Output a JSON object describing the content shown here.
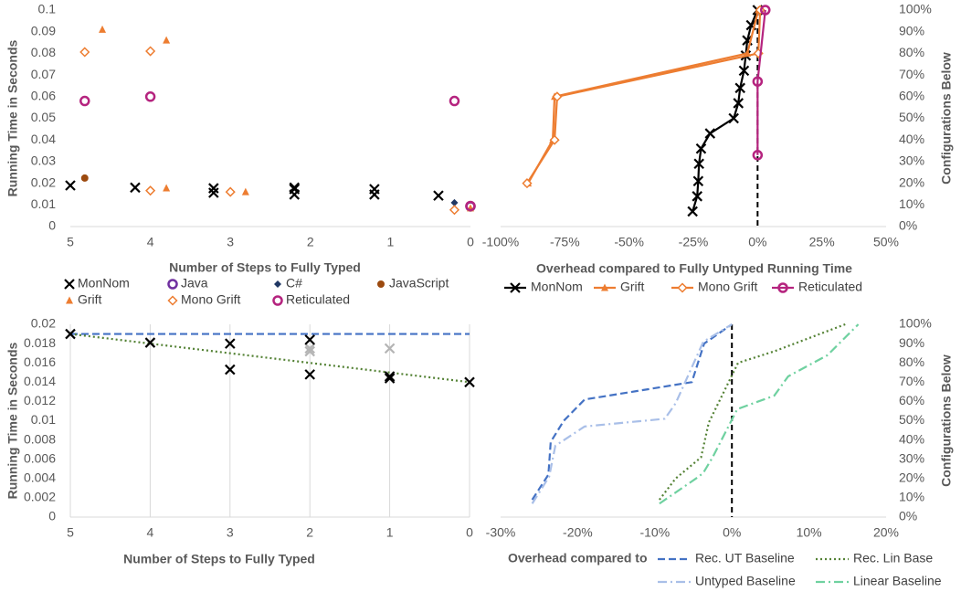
{
  "chart_data": [
    {
      "type": "scatter",
      "xlabel": "Number of Steps to Fully Typed",
      "ylabel": "Running Time in Seconds",
      "xlim": [
        5,
        0
      ],
      "xticks": [
        5,
        4,
        3,
        2,
        1,
        0
      ],
      "ylim": [
        0,
        0.1
      ],
      "yticks": [
        0,
        0.01,
        0.02,
        0.03,
        0.04,
        0.05,
        0.06,
        0.07,
        0.08,
        0.09,
        0.1
      ],
      "series": [
        {
          "name": "MonNom",
          "color": "#000000",
          "marker": "x",
          "x": [
            5,
            4.19,
            3.21,
            3.21,
            2.2,
            2.2,
            2.2,
            1.2,
            1.2,
            0.4
          ],
          "values": [
            0.019,
            0.018,
            0.0177,
            0.0156,
            0.018,
            0.0173,
            0.0148,
            0.0173,
            0.0148,
            0.0143
          ]
        },
        {
          "name": "Java",
          "color": "#7030a0",
          "marker": "ring",
          "x": [
            0
          ],
          "values": [
            0.0093
          ]
        },
        {
          "name": "C#",
          "color": "#203864",
          "marker": "diamond",
          "x": [
            0.2
          ],
          "values": [
            0.011
          ]
        },
        {
          "name": "JavaScript",
          "color": "#9c4a0f",
          "marker": "dot",
          "x": [
            4.82
          ],
          "values": [
            0.0224
          ]
        },
        {
          "name": "Grift",
          "color": "#ed7d31",
          "marker": "triangle",
          "x": [
            4.6,
            3.8,
            3.8,
            2.81,
            0
          ],
          "values": [
            0.091,
            0.086,
            0.0177,
            0.016,
            0.0085
          ]
        },
        {
          "name": "Mono Grift",
          "color": "#ed7d31",
          "marker": "open-diamond",
          "x": [
            4.82,
            4.0,
            4.0,
            3.0,
            0.2
          ],
          "values": [
            0.0806,
            0.081,
            0.0166,
            0.016,
            0.0077
          ]
        },
        {
          "name": "Reticulated",
          "color": "#b5247f",
          "marker": "ring",
          "x": [
            4.82,
            4.0,
            0.2,
            0
          ],
          "values": [
            0.058,
            0.06,
            0.058,
            0.0095
          ]
        }
      ]
    },
    {
      "type": "line",
      "xlabel": "Overhead compared to Fully Untyped Running Time",
      "ylabel": "Configurations Below",
      "yaxis_side": "right",
      "xlim": [
        -100,
        50
      ],
      "xticks": [
        {
          "value": -100,
          "label": "-100%"
        },
        {
          "value": -75,
          "label": "-75%"
        },
        {
          "value": -50,
          "label": "-50%"
        },
        {
          "value": -25,
          "label": "-25%"
        },
        {
          "value": 0,
          "label": "0%"
        },
        {
          "value": 25,
          "label": "25%"
        },
        {
          "value": 50,
          "label": "50%"
        }
      ],
      "ylim": [
        0,
        100
      ],
      "yticks": [
        {
          "value": 0,
          "label": "0%"
        },
        {
          "value": 10,
          "label": "10%"
        },
        {
          "value": 20,
          "label": "20%"
        },
        {
          "value": 30,
          "label": "30%"
        },
        {
          "value": 40,
          "label": "40%"
        },
        {
          "value": 50,
          "label": "50%"
        },
        {
          "value": 60,
          "label": "60%"
        },
        {
          "value": 70,
          "label": "70%"
        },
        {
          "value": 80,
          "label": "80%"
        },
        {
          "value": 90,
          "label": "90%"
        },
        {
          "value": 100,
          "label": "100%"
        }
      ],
      "vline": 0,
      "series": [
        {
          "name": "MonNom",
          "color": "#000000",
          "marker": "x",
          "line": "solid",
          "x": [
            -25.3,
            -23.5,
            -23.1,
            -22.8,
            -22,
            -18.5,
            -9.3,
            -7.5,
            -6.8,
            -5.3,
            -4.6,
            -4,
            -2.5,
            0
          ],
          "values": [
            7,
            14,
            21,
            29,
            36,
            43,
            50,
            57,
            64,
            72,
            79,
            86,
            93,
            100
          ]
        },
        {
          "name": "Grift",
          "color": "#ed7d31",
          "marker": "triangle",
          "line": "solid",
          "x": [
            -89.3,
            -79.7,
            -79,
            -4,
            0.3
          ],
          "values": [
            20,
            40,
            60,
            80,
            100
          ]
        },
        {
          "name": "Mono Grift",
          "color": "#ed7d31",
          "marker": "open-diamond",
          "line": "solid",
          "x": [
            -89.7,
            -79,
            -78,
            0.3,
            1
          ],
          "values": [
            20,
            40,
            60,
            80,
            100
          ]
        },
        {
          "name": "Reticulated",
          "color": "#b5247f",
          "marker": "ring",
          "line": "solid",
          "x": [
            0,
            0,
            3
          ],
          "values": [
            33,
            67,
            100
          ]
        }
      ]
    },
    {
      "type": "scatter",
      "xlabel": "Number of Steps to Fully Typed",
      "ylabel": "Running Time in Seconds",
      "xgrid": true,
      "xlim": [
        5,
        0
      ],
      "xticks": [
        5,
        4,
        3,
        2,
        1,
        0
      ],
      "ylim": [
        0,
        0.02
      ],
      "yticks": [
        0,
        0.002,
        0.004,
        0.006,
        0.008,
        0.01,
        0.012,
        0.014,
        0.016,
        0.018,
        0.02
      ],
      "series": [
        {
          "color": "#4472c4",
          "line": "dashed",
          "x": [
            5,
            0
          ],
          "values": [
            0.019,
            0.019
          ]
        },
        {
          "color": "#548235",
          "line": "dotted",
          "x": [
            5,
            0
          ],
          "values": [
            0.019,
            0.014
          ]
        },
        {
          "color": "#b4b4b4",
          "marker": "x",
          "x": [
            2,
            2,
            1
          ],
          "values": [
            0.0175,
            0.0172,
            0.0175
          ]
        },
        {
          "color": "#000000",
          "marker": "x",
          "x": [
            5,
            4,
            3,
            3,
            2,
            2,
            1,
            1,
            0
          ],
          "values": [
            0.019,
            0.0181,
            0.018,
            0.0153,
            0.0184,
            0.0148,
            0.0146,
            0.0144,
            0.014
          ]
        }
      ]
    },
    {
      "type": "line",
      "xlabel": "Overhead compared to",
      "ylabel": "Configurations Below",
      "yaxis_side": "right",
      "xlim": [
        -30,
        20
      ],
      "xticks": [
        {
          "value": -30,
          "label": "-30%"
        },
        {
          "value": -20,
          "label": "-20%"
        },
        {
          "value": -10,
          "label": "-10%"
        },
        {
          "value": 0,
          "label": "0%"
        },
        {
          "value": 10,
          "label": "10%"
        },
        {
          "value": 20,
          "label": "20%"
        }
      ],
      "ylim": [
        0,
        100
      ],
      "yticks": [
        {
          "value": 0,
          "label": "0%"
        },
        {
          "value": 10,
          "label": "10%"
        },
        {
          "value": 20,
          "label": "20%"
        },
        {
          "value": 30,
          "label": "30%"
        },
        {
          "value": 40,
          "label": "40%"
        },
        {
          "value": 50,
          "label": "50%"
        },
        {
          "value": 60,
          "label": "60%"
        },
        {
          "value": 70,
          "label": "70%"
        },
        {
          "value": 80,
          "label": "80%"
        },
        {
          "value": 90,
          "label": "90%"
        },
        {
          "value": 100,
          "label": "100%"
        }
      ],
      "vline": 0,
      "series": [
        {
          "name": "Rec. UT Baseline",
          "color": "#4472c4",
          "line": "dashed",
          "x": [
            -25.9,
            -23.8,
            -23.5,
            -21.8,
            -19.1,
            -5.2,
            -3.6,
            0
          ],
          "values": [
            9,
            22,
            39,
            50,
            61,
            70,
            90,
            100
          ]
        },
        {
          "name": "Rec. Lin Base",
          "color": "#548235",
          "line": "dotted",
          "x": [
            -9.4,
            -7.3,
            -4,
            -3,
            0.8,
            5.5,
            14.7
          ],
          "values": [
            9,
            20,
            31,
            49,
            80,
            86,
            100
          ]
        },
        {
          "name": "Untyped Baseline",
          "color": "#a9bfe8",
          "line": "dashdot",
          "x": [
            -25.9,
            -23.7,
            -22.9,
            -19.1,
            -8.7,
            -7.3,
            -3.7,
            0
          ],
          "values": [
            7,
            21,
            37,
            47,
            51,
            59,
            91,
            100
          ]
        },
        {
          "name": "Linear Baseline",
          "color": "#6fd1a0",
          "line": "dashdot",
          "x": [
            -9.4,
            -4.3,
            -3.7,
            -2.5,
            0.7,
            5.5,
            7.3,
            12.4,
            16.4
          ],
          "values": [
            7,
            21,
            23,
            31,
            56,
            63,
            73,
            84,
            100
          ]
        }
      ]
    }
  ]
}
